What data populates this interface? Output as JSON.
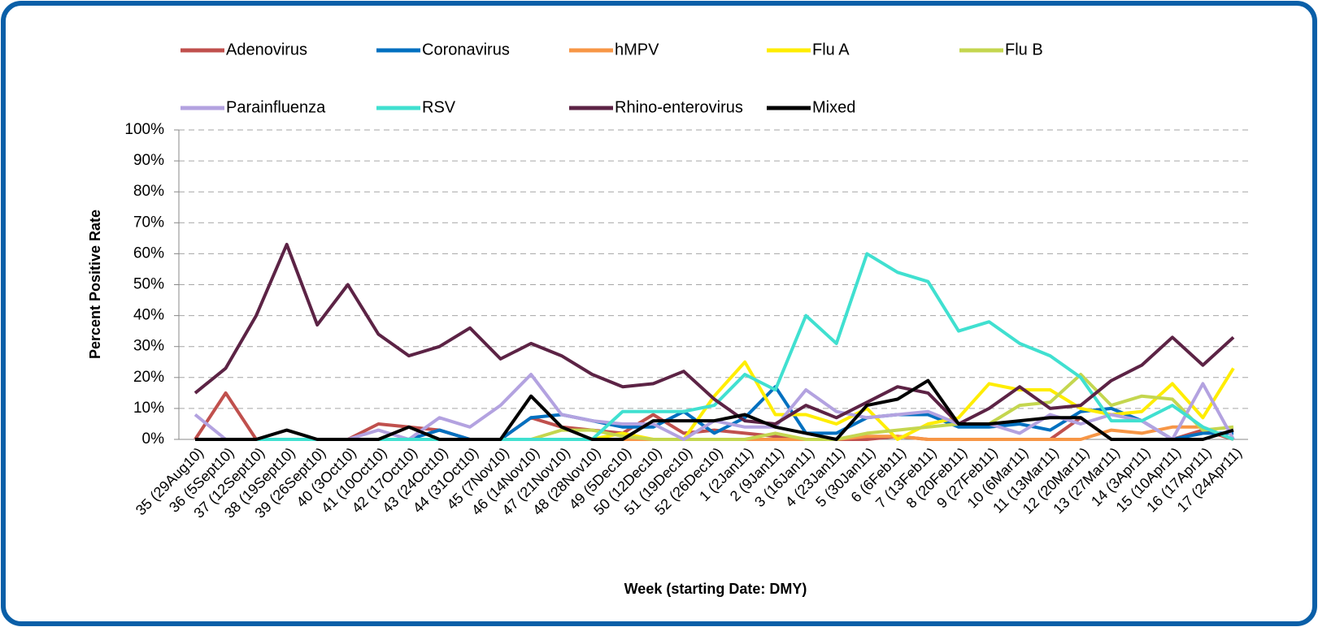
{
  "chart_data": {
    "type": "line",
    "x_label": "Week (starting Date: DMY)",
    "y_label": "Percent Positive Rate",
    "categories": [
      "35 (29Aug10)",
      "36 (5Sept10)",
      "37 (12Sept10)",
      "38 (19Sept10)",
      "39 (26Sept10)",
      "40 (3Oct10)",
      "41 (10Oct10)",
      "42 (17Oct10)",
      "43 (24Oct10)",
      "44 (31Oct10)",
      "45 (7Nov10)",
      "46 (14Nov10)",
      "47 (21Nov10)",
      "48 (28Nov10)",
      "49 (5Dec10)",
      "50 (12Dec10)",
      "51 (19Dec10)",
      "52 (26Dec10)",
      "1 (2Jan11)",
      "2 (9Jan11)",
      "3 (16Jan11)",
      "4 (23Jan11)",
      "5 (30Jan11)",
      "6 (6Feb11)",
      "7 (13Feb11)",
      "8 (20Feb11)",
      "9 (27Feb11)",
      "10 (6Mar11)",
      "11 (13Mar11)",
      "12 (20Mar11)",
      "13 (27Mar11)",
      "14 (3Apr11)",
      "15 (10Apr11)",
      "16 (17Apr11)",
      "17 (24Apr11)"
    ],
    "series": [
      {
        "name": "Adenovirus",
        "color": "#c0504d",
        "values": [
          0,
          15,
          0,
          0,
          0,
          0,
          5,
          4,
          3,
          0,
          0,
          7,
          4,
          3,
          2,
          8,
          2,
          3,
          2,
          1,
          0,
          0,
          0,
          1,
          0,
          0,
          0,
          0,
          0,
          7,
          0,
          0,
          0,
          3,
          0
        ]
      },
      {
        "name": "Coronavirus",
        "color": "#0070c0",
        "values": [
          0,
          0,
          0,
          0,
          0,
          0,
          0,
          0,
          3,
          0,
          0,
          7,
          8,
          6,
          4,
          4,
          9,
          2,
          7,
          17,
          2,
          2,
          7,
          8,
          8,
          4,
          4,
          5,
          3,
          9,
          10,
          6,
          0,
          2,
          2
        ]
      },
      {
        "name": "hMPV",
        "color": "#f79646",
        "values": [
          0,
          0,
          0,
          0,
          0,
          0,
          0,
          0,
          0,
          0,
          0,
          0,
          0,
          0,
          0,
          0,
          0,
          0,
          0,
          0,
          0,
          0,
          1,
          1,
          0,
          0,
          0,
          0,
          0,
          0,
          3,
          2,
          4,
          4,
          0
        ]
      },
      {
        "name": "Flu A",
        "color": "#ffed00",
        "values": [
          0,
          0,
          0,
          0,
          0,
          0,
          0,
          0,
          0,
          0,
          0,
          0,
          0,
          0,
          2,
          0,
          0,
          14,
          25,
          8,
          8,
          5,
          10,
          0,
          5,
          7,
          18,
          16,
          16,
          10,
          8,
          9,
          18,
          7,
          23
        ]
      },
      {
        "name": "Flu B",
        "color": "#c4d64f",
        "values": [
          0,
          0,
          0,
          0,
          0,
          0,
          0,
          0,
          0,
          0,
          0,
          0,
          3,
          3,
          1,
          0,
          0,
          0,
          0,
          2,
          0,
          0,
          2,
          3,
          4,
          5,
          5,
          11,
          12,
          21,
          11,
          14,
          13,
          3,
          4
        ]
      },
      {
        "name": "Parainfluenza",
        "color": "#b3a2e0",
        "values": [
          8,
          0,
          0,
          0,
          0,
          0,
          3,
          0,
          7,
          4,
          11,
          21,
          8,
          6,
          5,
          5,
          0,
          6,
          4,
          4,
          16,
          9,
          7,
          8,
          9,
          5,
          5,
          2,
          8,
          5,
          8,
          6,
          0,
          18,
          0
        ]
      },
      {
        "name": "RSV",
        "color": "#40e0d0",
        "values": [
          0,
          0,
          0,
          0,
          0,
          0,
          0,
          0,
          0,
          0,
          0,
          0,
          0,
          0,
          9,
          9,
          9,
          11,
          21,
          16,
          40,
          31,
          60,
          54,
          51,
          35,
          38,
          31,
          27,
          20,
          6,
          6,
          11,
          4,
          0
        ]
      },
      {
        "name": "Rhino-enterovirus",
        "color": "#5c2345",
        "values": [
          15,
          23,
          40,
          63,
          37,
          50,
          34,
          27,
          30,
          36,
          26,
          31,
          27,
          21,
          17,
          18,
          22,
          13,
          6,
          5,
          11,
          7,
          12,
          17,
          15,
          5,
          10,
          17,
          10,
          11,
          19,
          24,
          33,
          24,
          33
        ]
      },
      {
        "name": "Mixed",
        "color": "#000000",
        "values": [
          0,
          0,
          0,
          3,
          0,
          0,
          0,
          4,
          0,
          0,
          0,
          14,
          4,
          0,
          0,
          6,
          6,
          6,
          8,
          4,
          2,
          0,
          11,
          13,
          19,
          5,
          5,
          6,
          7,
          7,
          0,
          0,
          0,
          0,
          3
        ]
      }
    ],
    "ylim": [
      0,
      100
    ],
    "yticks": [
      {
        "value": 0,
        "label": "0%"
      },
      {
        "value": 10,
        "label": "10%"
      },
      {
        "value": 20,
        "label": "20%"
      },
      {
        "value": 30,
        "label": "30%"
      },
      {
        "value": 40,
        "label": "40%"
      },
      {
        "value": 50,
        "label": "50%"
      },
      {
        "value": 60,
        "label": "60%"
      },
      {
        "value": 70,
        "label": "70%"
      },
      {
        "value": 80,
        "label": "80%"
      },
      {
        "value": 90,
        "label": "90%"
      },
      {
        "value": 100,
        "label": "100%"
      }
    ],
    "grid": true
  }
}
